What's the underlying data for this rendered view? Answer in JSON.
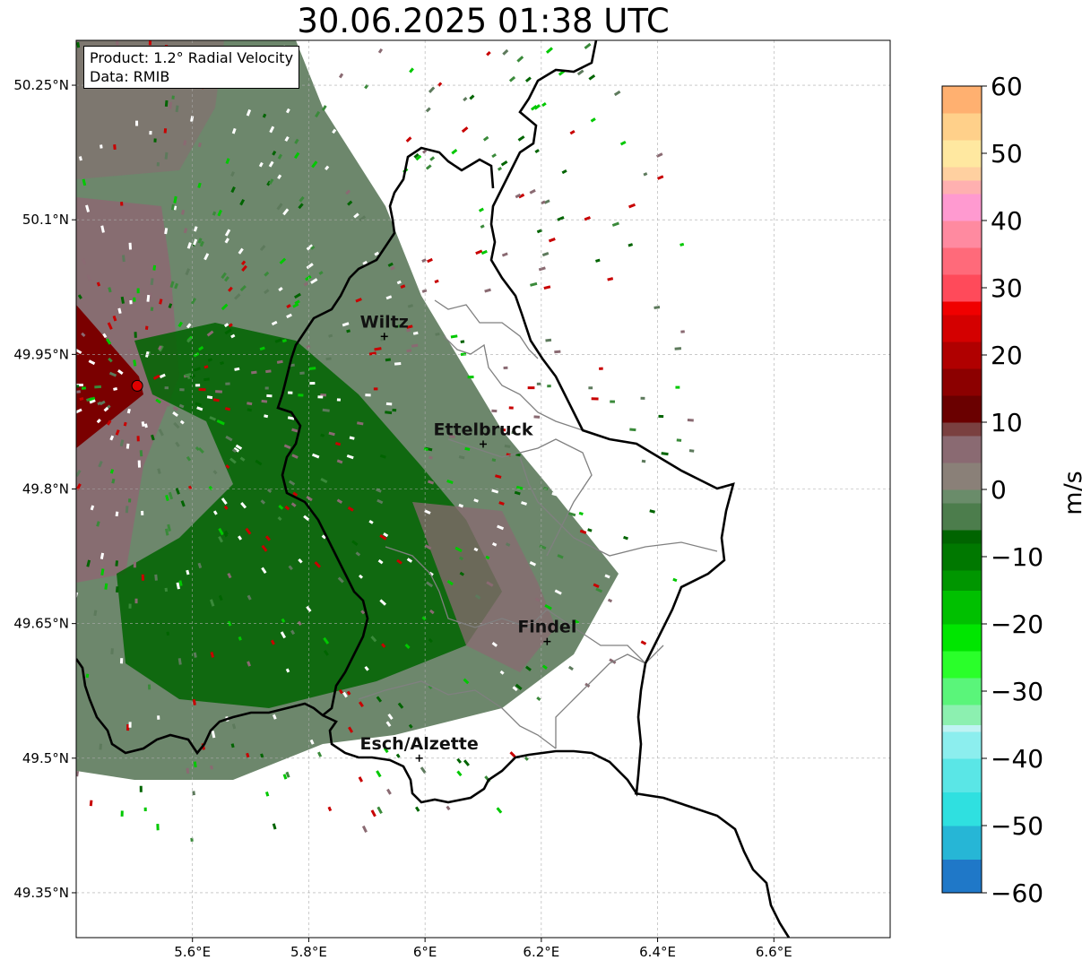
{
  "title": "30.06.2025 01:38 UTC",
  "info": {
    "product": "Product: 1.2° Radial Velocity",
    "data": "Data: RMIB"
  },
  "axes": {
    "lon_ticks": [
      {
        "value": 5.6,
        "label": "5.6°E"
      },
      {
        "value": 5.8,
        "label": "5.8°E"
      },
      {
        "value": 6.0,
        "label": "6°E"
      },
      {
        "value": 6.2,
        "label": "6.2°E"
      },
      {
        "value": 6.4,
        "label": "6.4°E"
      },
      {
        "value": 6.6,
        "label": "6.6°E"
      }
    ],
    "lat_ticks": [
      {
        "value": 50.25,
        "label": "50.25°N"
      },
      {
        "value": 50.1,
        "label": "50.1°N"
      },
      {
        "value": 49.95,
        "label": "49.95°N"
      },
      {
        "value": 49.8,
        "label": "49.8°N"
      },
      {
        "value": 49.65,
        "label": "49.65°N"
      },
      {
        "value": 49.5,
        "label": "49.5°N"
      },
      {
        "value": 49.35,
        "label": "49.35°N"
      }
    ],
    "lon_range": [
      5.4,
      6.8
    ],
    "lat_range": [
      49.3,
      50.3
    ],
    "grid": true
  },
  "cities": [
    {
      "name": "Wiltz",
      "lon": 5.93,
      "lat": 49.97
    },
    {
      "name": "Ettelbruck",
      "lon": 6.1,
      "lat": 49.85
    },
    {
      "name": "Findel",
      "lon": 6.21,
      "lat": 49.63
    },
    {
      "name": "Esch/Alzette",
      "lon": 5.99,
      "lat": 49.5
    }
  ],
  "radar_site": {
    "lon": 5.505,
    "lat": 49.915
  },
  "colorbar": {
    "label": "m/s",
    "min": -60,
    "max": 60,
    "ticks": [
      60,
      50,
      40,
      30,
      20,
      10,
      0,
      -10,
      -20,
      -30,
      -40,
      -50,
      -60
    ],
    "tick_labels": [
      "60",
      "50",
      "40",
      "30",
      "20",
      "10",
      "0",
      "−10",
      "−20",
      "−30",
      "−40",
      "−50",
      "−60"
    ]
  },
  "colors": {
    "inbound_dark": "#006400",
    "inbound_light": "#00e600",
    "near_zero_neg": "#5d7a5c",
    "near_zero_pos": "#8a6a72",
    "outbound": "#c80000",
    "border": "#000000",
    "admin_border": "#808080"
  }
}
